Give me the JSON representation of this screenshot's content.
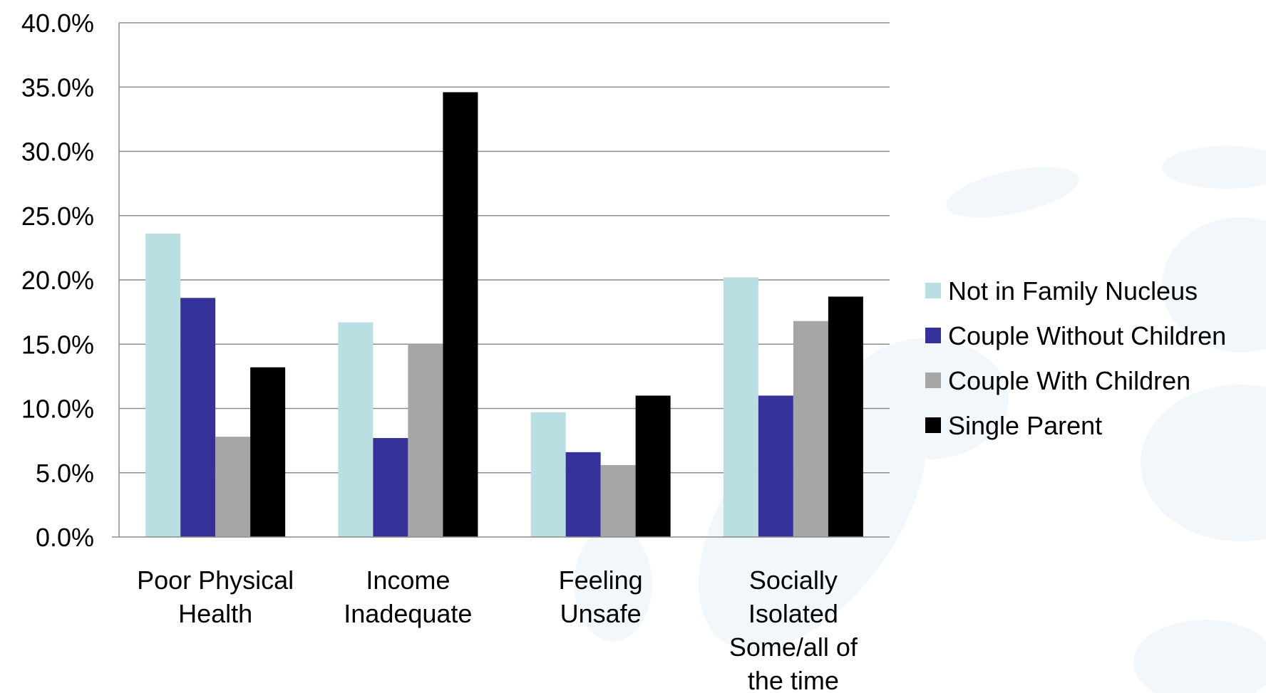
{
  "chart_data": {
    "type": "bar",
    "title": "",
    "xlabel": "",
    "ylabel": "",
    "categories": [
      [
        "Poor Physical",
        "Health"
      ],
      [
        "Income",
        "Inadequate"
      ],
      [
        "Feeling",
        "Unsafe"
      ],
      [
        "Socially",
        "Isolated",
        "Some/all of",
        "the time"
      ]
    ],
    "series": [
      {
        "name": "Not in Family Nucleus",
        "color": "#B9DFE2",
        "values": [
          23.6,
          16.7,
          9.7,
          20.2
        ]
      },
      {
        "name": "Couple Without Children",
        "color": "#35339A",
        "values": [
          18.6,
          7.7,
          6.6,
          11.0
        ]
      },
      {
        "name": "Couple With Children",
        "color": "#A6A6A6",
        "values": [
          7.8,
          15.0,
          5.6,
          16.8
        ]
      },
      {
        "name": "Single Parent",
        "color": "#000000",
        "values": [
          13.2,
          34.6,
          11.0,
          18.7
        ]
      }
    ],
    "ylim": [
      0,
      40
    ],
    "yticks": [
      "0.0%",
      "5.0%",
      "10.0%",
      "15.0%",
      "20.0%",
      "25.0%",
      "30.0%",
      "35.0%",
      "40.0%"
    ],
    "grid": true,
    "legend_position": "right"
  }
}
